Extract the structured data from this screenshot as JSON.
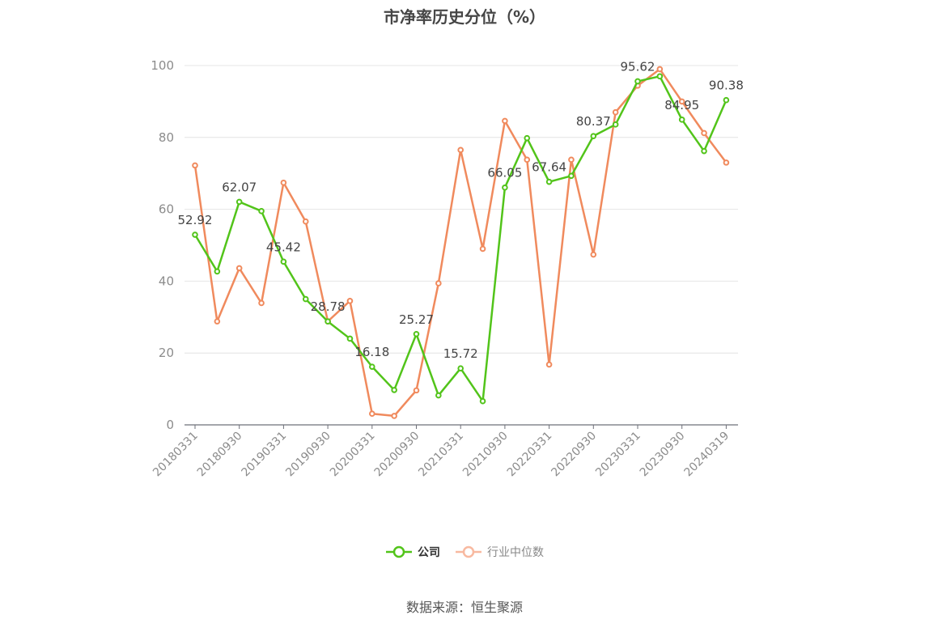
{
  "chart_data": {
    "type": "line",
    "title": "市净率历史分位（%）",
    "x": [
      "20180331",
      "20180630",
      "20180930",
      "20181231",
      "20190331",
      "20190630",
      "20190930",
      "20191231",
      "20200331",
      "20200630",
      "20200930",
      "20201231",
      "20210331",
      "20210630",
      "20210930",
      "20211231",
      "20220331",
      "20220630",
      "20220930",
      "20221231",
      "20230331",
      "20230630",
      "20230930",
      "20231231",
      "20240319"
    ],
    "xtick_labels": [
      "20180331",
      "20180930",
      "20190331",
      "20190930",
      "20200331",
      "20200930",
      "20210331",
      "20210930",
      "20220331",
      "20220930",
      "20230331",
      "20230930",
      "20240319"
    ],
    "ylim": [
      0,
      100
    ],
    "yticks": [
      0,
      20,
      40,
      60,
      80,
      100
    ],
    "grid": true,
    "legend_position": "bottom",
    "series": [
      {
        "name": "公司",
        "color": "#52c41a",
        "values": [
          52.92,
          42.7,
          62.07,
          59.5,
          45.42,
          35.0,
          28.78,
          24.0,
          16.18,
          9.7,
          25.27,
          8.2,
          15.72,
          6.6,
          66.05,
          79.8,
          67.64,
          69.3,
          80.37,
          83.6,
          95.62,
          97.0,
          84.95,
          76.2,
          90.38
        ],
        "labels": {
          "0": "52.92",
          "2": "62.07",
          "4": "45.42",
          "6": "28.78",
          "8": "16.18",
          "10": "25.27",
          "12": "15.72",
          "14": "66.05",
          "16": "67.64",
          "18": "80.37",
          "20": "95.62",
          "22": "84.95",
          "24": "90.38"
        }
      },
      {
        "name": "行业中位数",
        "color": "#f08a5d",
        "values": [
          72.2,
          28.8,
          43.6,
          33.9,
          67.4,
          56.6,
          28.8,
          34.5,
          3.1,
          2.5,
          9.6,
          39.4,
          76.5,
          49.0,
          84.6,
          73.8,
          16.8,
          73.8,
          47.4,
          87.0,
          94.4,
          99.0,
          90.0,
          81.2,
          73.0
        ]
      }
    ]
  },
  "legend": {
    "company": "公司",
    "industry": "行业中位数"
  },
  "source": "数据来源：恒生聚源"
}
